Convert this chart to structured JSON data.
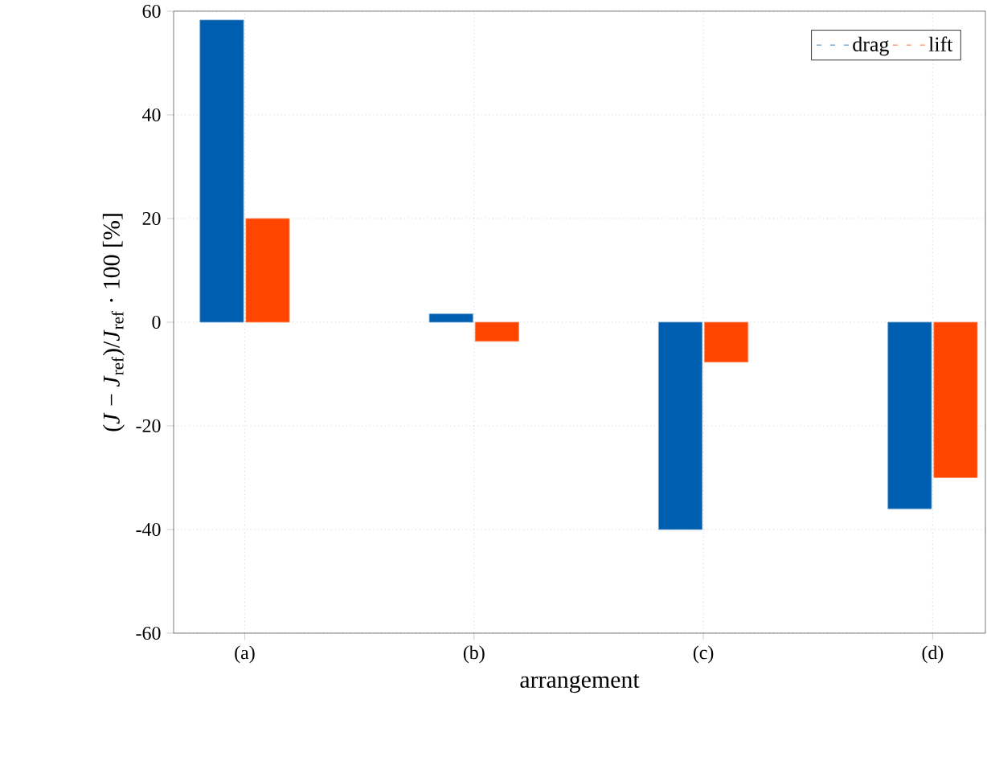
{
  "chart_data": {
    "type": "bar",
    "xlabel": "arrangement",
    "ylabel": "(*J* − *J*$_{ref}$)/*J*$_{ref}$ · 100 [%]",
    "categories": [
      "(a)",
      "(b)",
      "(c)",
      "(d)"
    ],
    "series": [
      {
        "name": "drag",
        "color": "#005eb0",
        "values": [
          58.3,
          1.6,
          -40,
          -36
        ]
      },
      {
        "name": "lift",
        "color": "#ff4500",
        "values": [
          20,
          -3.7,
          -7.7,
          -30
        ]
      }
    ],
    "ylim": [
      -60,
      60
    ],
    "yticks": [
      -60,
      -40,
      -20,
      0,
      20,
      40,
      60
    ],
    "grid": true,
    "legend": "top right"
  }
}
